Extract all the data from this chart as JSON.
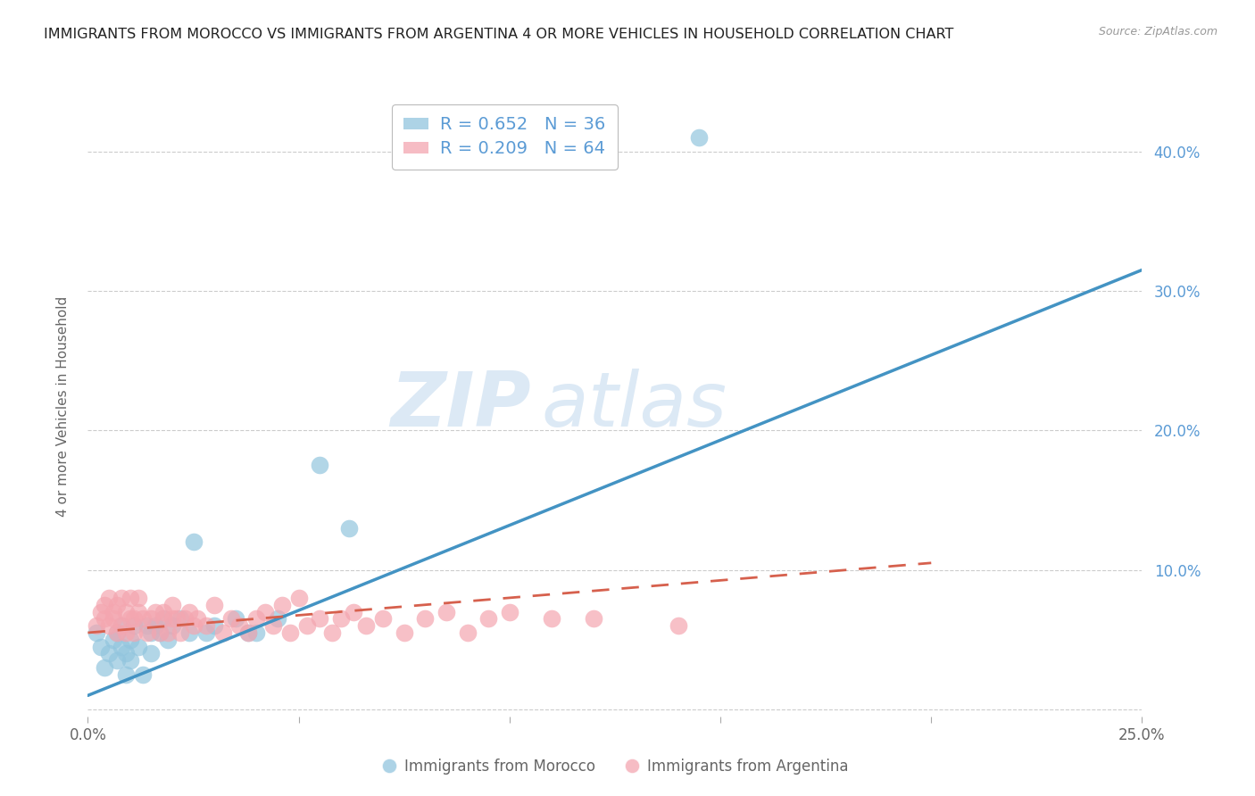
{
  "title": "IMMIGRANTS FROM MOROCCO VS IMMIGRANTS FROM ARGENTINA 4 OR MORE VEHICLES IN HOUSEHOLD CORRELATION CHART",
  "source": "Source: ZipAtlas.com",
  "ylabel": "4 or more Vehicles in Household",
  "xlim": [
    0.0,
    0.25
  ],
  "ylim": [
    -0.005,
    0.44
  ],
  "xticks": [
    0.0,
    0.05,
    0.1,
    0.15,
    0.2,
    0.25
  ],
  "xticklabels": [
    "0.0%",
    "",
    "",
    "",
    "",
    "25.0%"
  ],
  "yticks": [
    0.0,
    0.1,
    0.2,
    0.3,
    0.4
  ],
  "yticklabels": [
    "",
    "10.0%",
    "20.0%",
    "30.0%",
    "40.0%"
  ],
  "morocco_R": 0.652,
  "morocco_N": 36,
  "argentina_R": 0.209,
  "argentina_N": 64,
  "morocco_color": "#92c5de",
  "argentina_color": "#f4a6b0",
  "morocco_line_color": "#4393c3",
  "argentina_line_color": "#d6604d",
  "watermark_zip": "ZIP",
  "watermark_atlas": "atlas",
  "watermark_color": "#dce9f5",
  "morocco_scatter_x": [
    0.002,
    0.003,
    0.004,
    0.005,
    0.006,
    0.007,
    0.007,
    0.008,
    0.008,
    0.009,
    0.009,
    0.01,
    0.01,
    0.011,
    0.012,
    0.013,
    0.014,
    0.015,
    0.015,
    0.016,
    0.017,
    0.018,
    0.019,
    0.02,
    0.022,
    0.024,
    0.025,
    0.028,
    0.03,
    0.035,
    0.038,
    0.04,
    0.045,
    0.055,
    0.062,
    0.145
  ],
  "morocco_scatter_y": [
    0.055,
    0.045,
    0.03,
    0.04,
    0.05,
    0.055,
    0.035,
    0.045,
    0.06,
    0.04,
    0.025,
    0.05,
    0.035,
    0.06,
    0.045,
    0.025,
    0.06,
    0.055,
    0.04,
    0.06,
    0.055,
    0.065,
    0.05,
    0.06,
    0.065,
    0.055,
    0.12,
    0.055,
    0.06,
    0.065,
    0.055,
    0.055,
    0.065,
    0.175,
    0.13,
    0.41
  ],
  "argentina_scatter_x": [
    0.002,
    0.003,
    0.004,
    0.004,
    0.005,
    0.005,
    0.006,
    0.006,
    0.007,
    0.007,
    0.008,
    0.008,
    0.009,
    0.009,
    0.01,
    0.01,
    0.011,
    0.011,
    0.012,
    0.012,
    0.013,
    0.014,
    0.015,
    0.016,
    0.017,
    0.018,
    0.018,
    0.019,
    0.02,
    0.02,
    0.021,
    0.022,
    0.023,
    0.024,
    0.025,
    0.026,
    0.028,
    0.03,
    0.032,
    0.034,
    0.036,
    0.038,
    0.04,
    0.042,
    0.044,
    0.046,
    0.048,
    0.05,
    0.052,
    0.055,
    0.058,
    0.06,
    0.063,
    0.066,
    0.07,
    0.075,
    0.08,
    0.085,
    0.09,
    0.095,
    0.1,
    0.11,
    0.12,
    0.14
  ],
  "argentina_scatter_y": [
    0.06,
    0.07,
    0.065,
    0.075,
    0.06,
    0.08,
    0.065,
    0.07,
    0.055,
    0.075,
    0.06,
    0.08,
    0.055,
    0.07,
    0.065,
    0.08,
    0.055,
    0.065,
    0.07,
    0.08,
    0.065,
    0.055,
    0.065,
    0.07,
    0.055,
    0.065,
    0.07,
    0.055,
    0.065,
    0.075,
    0.065,
    0.055,
    0.065,
    0.07,
    0.06,
    0.065,
    0.06,
    0.075,
    0.055,
    0.065,
    0.06,
    0.055,
    0.065,
    0.07,
    0.06,
    0.075,
    0.055,
    0.08,
    0.06,
    0.065,
    0.055,
    0.065,
    0.07,
    0.06,
    0.065,
    0.055,
    0.065,
    0.07,
    0.055,
    0.065,
    0.07,
    0.065,
    0.065,
    0.06
  ],
  "morocco_trend_x": [
    0.0,
    0.25
  ],
  "morocco_trend_y": [
    0.01,
    0.315
  ],
  "argentina_trend_x": [
    0.0,
    0.2
  ],
  "argentina_trend_y": [
    0.055,
    0.105
  ],
  "bg_color": "#ffffff",
  "right_tick_color": "#5b9bd5",
  "legend_text_color": "#5b9bd5",
  "grid_color": "#cccccc",
  "tick_color": "#aaaaaa",
  "label_color": "#666666"
}
